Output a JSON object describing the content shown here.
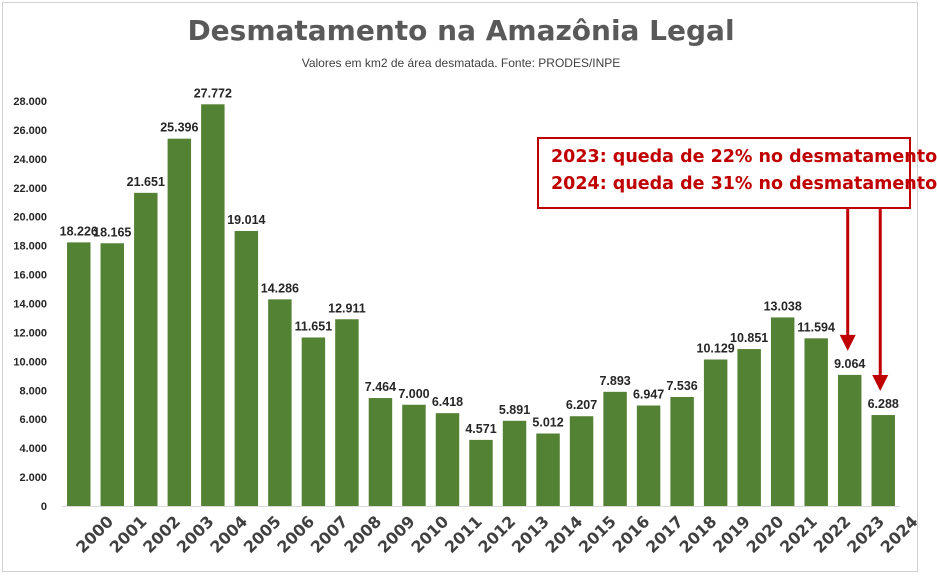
{
  "chart_data": {
    "type": "bar",
    "title": "Desmatamento na Amazônia Legal",
    "subtitle": "Valores em km2 de área desmatada. Fonte: PRODES/INPE",
    "categories": [
      "2000",
      "2001",
      "2002",
      "2003",
      "2004",
      "2005",
      "2006",
      "2007",
      "2008",
      "2009",
      "2010",
      "2011",
      "2012",
      "2013",
      "2014",
      "2015",
      "2016",
      "2017",
      "2018",
      "2019",
      "2020",
      "2021",
      "2022",
      "2023",
      "2024"
    ],
    "values": [
      18226,
      18165,
      21651,
      25396,
      27772,
      19014,
      14286,
      11651,
      12911,
      7464,
      7000,
      6418,
      4571,
      5891,
      5012,
      6207,
      7893,
      6947,
      7536,
      10129,
      10851,
      13038,
      11594,
      9064,
      6288
    ],
    "value_labels": [
      "18.226",
      "18.165",
      "21.651",
      "25.396",
      "27.772",
      "19.014",
      "14.286",
      "11.651",
      "12.911",
      "7.464",
      "7.000",
      "6.418",
      "4.571",
      "5.891",
      "5.012",
      "6.207",
      "7.893",
      "6.947",
      "7.536",
      "10.129",
      "10.851",
      "13.038",
      "11.594",
      "9.064",
      "6.288"
    ],
    "yticks": [
      0,
      2000,
      4000,
      6000,
      8000,
      10000,
      12000,
      14000,
      16000,
      18000,
      20000,
      22000,
      24000,
      26000,
      28000
    ],
    "ytick_labels": [
      "0",
      "2.000",
      "4.000",
      "6.000",
      "8.000",
      "10.000",
      "12.000",
      "14.000",
      "16.000",
      "18.000",
      "20.000",
      "22.000",
      "24.000",
      "26.000",
      "28.000"
    ],
    "ylim": [
      0,
      28000
    ],
    "xlabel": "",
    "ylabel": "",
    "grid": false,
    "bar_color": "#548235",
    "annotations": [
      {
        "text": "2023: queda de 22% no desmatamento",
        "target": "2023"
      },
      {
        "text": "2024: queda de 31% no desmatamento",
        "target": "2024"
      }
    ],
    "annotation_color": "#c00000"
  }
}
